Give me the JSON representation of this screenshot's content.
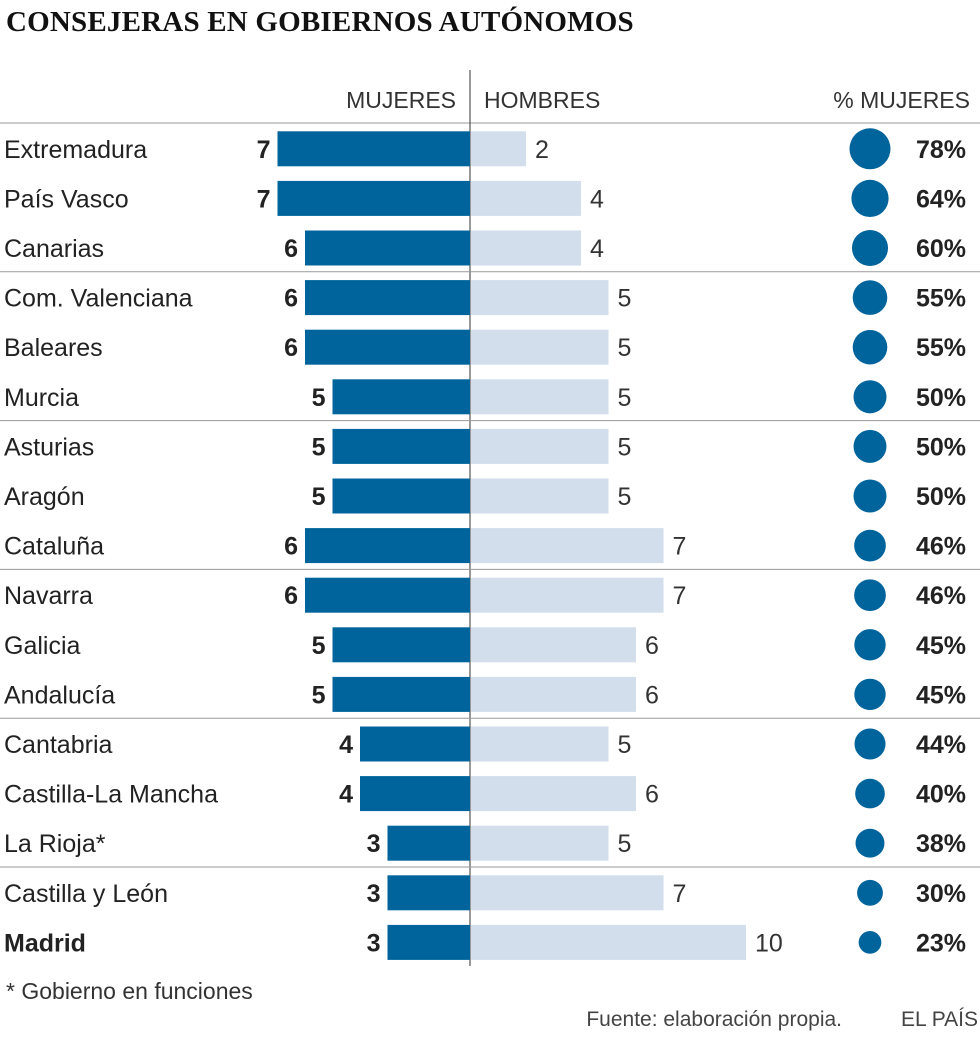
{
  "title": "CONSEJERAS EN GOBIERNOS AUTÓNOMOS",
  "footnote": "* Gobierno en funciones",
  "source": "Fuente: elaboración propia.",
  "brand": "EL PAÍS",
  "colors": {
    "women_bar": "#00649c",
    "men_bar": "#d2deec",
    "circle": "#00649c",
    "divider": "#9a9a9a"
  },
  "chart_data": {
    "type": "bar",
    "orientation": "horizontal-diverging",
    "headers": {
      "women": "MUJERES",
      "men": "HOMBRES",
      "pct": "% MUJERES"
    },
    "categories": [
      "Extremadura",
      "País Vasco",
      "Canarias",
      "Com. Valenciana",
      "Baleares",
      "Murcia",
      "Asturias",
      "Aragón",
      "Cataluña",
      "Navarra",
      "Galicia",
      "Andalucía",
      "Cantabria",
      "Castilla-La Mancha",
      "La Rioja*",
      "Castilla y León",
      "Madrid"
    ],
    "highlight": "Madrid",
    "series": [
      {
        "name": "MUJERES",
        "values": [
          7,
          7,
          6,
          6,
          6,
          5,
          5,
          5,
          6,
          6,
          5,
          5,
          4,
          4,
          3,
          3,
          3
        ]
      },
      {
        "name": "HOMBRES",
        "values": [
          2,
          4,
          4,
          5,
          5,
          5,
          5,
          5,
          7,
          7,
          6,
          6,
          5,
          6,
          5,
          7,
          10
        ]
      }
    ],
    "pct_women": [
      "78%",
      "64%",
      "60%",
      "55%",
      "55%",
      "50%",
      "50%",
      "50%",
      "46%",
      "46%",
      "45%",
      "45%",
      "44%",
      "40%",
      "38%",
      "30%",
      "23%"
    ],
    "pct_values": [
      78,
      64,
      60,
      55,
      55,
      50,
      50,
      50,
      46,
      46,
      45,
      45,
      44,
      40,
      38,
      30,
      23
    ],
    "group_breaks_after": [
      2,
      5,
      8,
      11,
      14
    ],
    "xlim": [
      0,
      10
    ]
  }
}
